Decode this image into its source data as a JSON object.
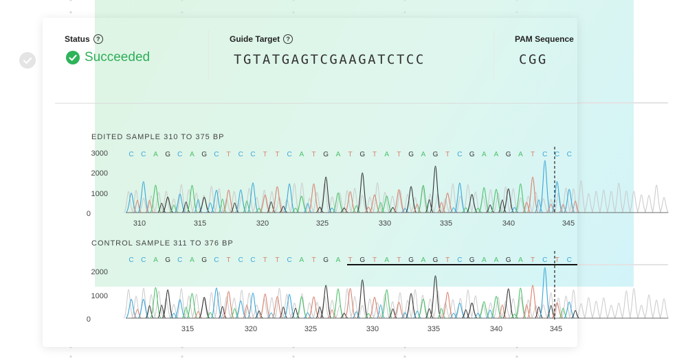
{
  "status": {
    "label": "Status",
    "value": "Succeeded"
  },
  "guide_target": {
    "label": "Guide Target",
    "value": "TGTATGAGTCGAAGATCTCC"
  },
  "pam": {
    "label": "PAM Sequence",
    "value": "CGG"
  },
  "colors": {
    "A": "#4cc06a",
    "C": "#3aa7d8",
    "G": "#333333",
    "T": "#d9826e",
    "success": "#2fb35a"
  },
  "edited": {
    "title": "EDITED SAMPLE 310 TO 375 BP",
    "sequence": [
      "C",
      "C",
      "A",
      "G",
      "C",
      "A",
      "G",
      "C",
      "T",
      "C",
      "C",
      "T",
      "T",
      "C",
      "A",
      "T",
      "G",
      "A",
      "T",
      "G",
      "T",
      "A",
      "T",
      "G",
      "A",
      "G",
      "T",
      "C",
      "G",
      "A",
      "A",
      "G",
      "A",
      "T",
      "C",
      "C",
      "C"
    ],
    "y_ticks": [
      "3000",
      "2000",
      "1000",
      "0"
    ],
    "x_ticks": [
      "310",
      "315",
      "320",
      "325",
      "330",
      "335",
      "340",
      "345"
    ]
  },
  "control": {
    "title": "CONTROL SAMPLE 311 TO 376 BP",
    "sequence": [
      "C",
      "C",
      "A",
      "G",
      "C",
      "A",
      "G",
      "C",
      "T",
      "C",
      "C",
      "T",
      "T",
      "C",
      "A",
      "T",
      "G",
      "A",
      "T",
      "G",
      "T",
      "A",
      "T",
      "G",
      "A",
      "G",
      "T",
      "C",
      "G",
      "A",
      "A",
      "G",
      "A",
      "T",
      "C",
      "T",
      "C"
    ],
    "y_ticks": [
      "2000",
      "1000",
      "0"
    ],
    "x_ticks": [
      "315",
      "320",
      "325",
      "330",
      "335",
      "340",
      "345"
    ]
  }
}
